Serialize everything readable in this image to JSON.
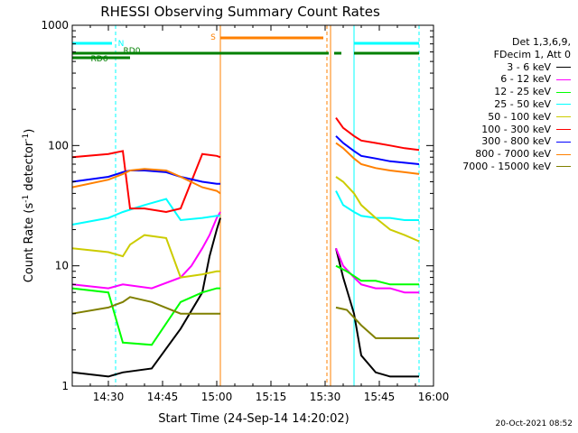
{
  "chart_data": {
    "type": "line",
    "title": "RHESSI Observing Summary Count Rates",
    "xlabel": "Start Time (24-Sep-14 14:20:02)",
    "ylabel_main": "Count Rate (s",
    "ylabel_exp1": "-1",
    "ylabel_mid": " detector",
    "ylabel_exp2": "-1",
    "ylabel_end": ")",
    "y_scale": "log",
    "ylim": [
      1,
      1000
    ],
    "xlim_min": [
      0,
      100
    ],
    "xticks": [
      {
        "min": 10,
        "label": "14:30"
      },
      {
        "min": 25,
        "label": "14:45"
      },
      {
        "min": 40,
        "label": "15:00"
      },
      {
        "min": 55,
        "label": "15:15"
      },
      {
        "min": 70,
        "label": "15:30"
      },
      {
        "min": 85,
        "label": "15:45"
      },
      {
        "min": 100,
        "label": "16:00"
      }
    ],
    "yticks": [
      {
        "v": 1,
        "label": "1"
      },
      {
        "v": 10,
        "label": "10"
      },
      {
        "v": 100,
        "label": "100"
      },
      {
        "v": 1000,
        "label": "1000"
      }
    ],
    "legend_header": [
      "Det 1,3,6,9,",
      "FDecim 1, Att 0"
    ],
    "series": [
      {
        "name": "3 - 6 keV",
        "color": "#000000",
        "x": [
          0,
          10,
          14,
          22,
          30,
          36,
          38,
          40,
          41,
          72,
          73,
          75,
          78,
          80,
          84,
          88,
          92,
          96
        ],
        "y": [
          1.3,
          1.2,
          1.3,
          1.4,
          3,
          6,
          12,
          20,
          25,
          null,
          14,
          8,
          4,
          1.8,
          1.3,
          1.2,
          1.2,
          1.2
        ]
      },
      {
        "name": "6 - 12 keV",
        "color": "#ff00ff",
        "x": [
          0,
          10,
          14,
          22,
          30,
          33,
          36,
          38,
          40,
          41,
          72,
          73,
          75,
          78,
          80,
          84,
          88,
          92,
          96
        ],
        "y": [
          7,
          6.5,
          7,
          6.5,
          8,
          10,
          14,
          18,
          25,
          28,
          null,
          14,
          10,
          8,
          7,
          6.5,
          6.5,
          6,
          6
        ]
      },
      {
        "name": "12 - 25 keV",
        "color": "#00ff00",
        "x": [
          0,
          10,
          14,
          22,
          30,
          36,
          40,
          41,
          72,
          73,
          76,
          80,
          84,
          88,
          92,
          96
        ],
        "y": [
          6.5,
          6,
          2.3,
          2.2,
          5,
          6,
          6.5,
          6.5,
          null,
          10,
          9,
          7.5,
          7.5,
          7,
          7,
          7
        ]
      },
      {
        "name": "25 - 50 keV",
        "color": "#00ffff",
        "x": [
          0,
          10,
          14,
          20,
          26,
          30,
          36,
          40,
          41,
          72,
          73,
          75,
          78,
          80,
          84,
          88,
          92,
          96
        ],
        "y": [
          22,
          25,
          28,
          32,
          36,
          24,
          25,
          26,
          26,
          null,
          42,
          32,
          28,
          26,
          25,
          25,
          24,
          24
        ]
      },
      {
        "name": "50 - 100 keV",
        "color": "#cccc00",
        "x": [
          0,
          10,
          14,
          16,
          20,
          26,
          30,
          36,
          40,
          41,
          72,
          73,
          75,
          78,
          80,
          84,
          88,
          92,
          96
        ],
        "y": [
          14,
          13,
          12,
          15,
          18,
          17,
          8,
          8.5,
          9,
          9,
          null,
          55,
          50,
          40,
          32,
          25,
          20,
          18,
          16
        ]
      },
      {
        "name": "100 - 300 keV",
        "color": "#ff0000",
        "x": [
          0,
          10,
          14,
          16,
          20,
          26,
          30,
          36,
          40,
          41,
          72,
          73,
          75,
          78,
          80,
          84,
          88,
          92,
          96
        ],
        "y": [
          80,
          85,
          90,
          30,
          30,
          28,
          30,
          85,
          82,
          80,
          null,
          170,
          140,
          120,
          110,
          105,
          100,
          95,
          92
        ]
      },
      {
        "name": "300 - 800 keV",
        "color": "#0000ff",
        "x": [
          0,
          10,
          14,
          16,
          20,
          26,
          30,
          36,
          40,
          41,
          72,
          73,
          75,
          78,
          80,
          84,
          88,
          92,
          96
        ],
        "y": [
          50,
          55,
          60,
          62,
          62,
          60,
          55,
          50,
          48,
          48,
          null,
          120,
          105,
          90,
          82,
          78,
          74,
          72,
          70
        ]
      },
      {
        "name": "800 - 7000 keV",
        "color": "#ff8000",
        "x": [
          0,
          10,
          14,
          16,
          20,
          26,
          30,
          36,
          40,
          41,
          72,
          73,
          75,
          78,
          80,
          84,
          88,
          92,
          96
        ],
        "y": [
          45,
          52,
          58,
          62,
          64,
          62,
          55,
          45,
          42,
          40,
          null,
          105,
          95,
          78,
          70,
          65,
          62,
          60,
          58
        ]
      },
      {
        "name": "7000 - 15000 keV",
        "color": "#808000",
        "x": [
          0,
          10,
          14,
          16,
          22,
          30,
          36,
          40,
          41,
          72,
          73,
          76,
          80,
          84,
          88,
          92,
          96
        ],
        "y": [
          4,
          4.5,
          5,
          5.5,
          5,
          4,
          4,
          4,
          4,
          null,
          4.5,
          4.3,
          3.2,
          2.5,
          2.5,
          2.5,
          2.5
        ]
      }
    ],
    "flags": [
      {
        "label": "N",
        "color": "#00ffff",
        "segments": [
          [
            0,
            11
          ],
          [
            78,
            96
          ]
        ]
      },
      {
        "label": "S",
        "color": "#ff8000",
        "segments": [
          [
            41,
            69.5
          ]
        ]
      },
      {
        "label": "RD0",
        "color": "#008000",
        "segments": [
          [
            0,
            30
          ],
          [
            30,
            71
          ],
          [
            72.5,
            74.5
          ],
          [
            78,
            96
          ]
        ]
      },
      {
        "label": "RD6",
        "color": "#008000",
        "segments": [
          [
            0,
            16
          ]
        ]
      }
    ],
    "vlines": [
      {
        "min": 12,
        "color": "#00ffff",
        "dash": true
      },
      {
        "min": 41,
        "color": "#ff8000",
        "dash": false
      },
      {
        "min": 70.5,
        "color": "#ff8000",
        "dash": true
      },
      {
        "min": 71.5,
        "color": "#ff8000",
        "dash": false
      },
      {
        "min": 78,
        "color": "#00ffff",
        "dash": false
      },
      {
        "min": 96,
        "color": "#00ffff",
        "dash": true
      }
    ],
    "timestamp": "20-Oct-2021 08:52"
  }
}
